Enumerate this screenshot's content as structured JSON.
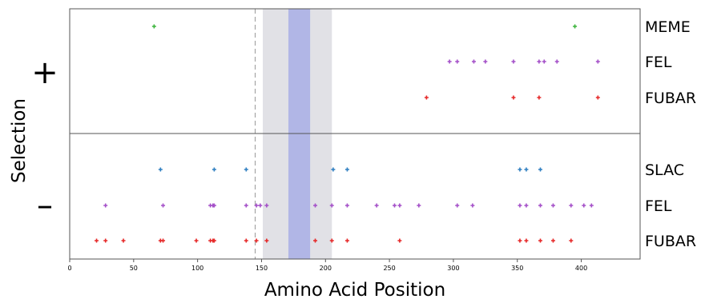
{
  "chart_data": {
    "type": "scatter",
    "title": "",
    "xlabel": "Amino Acid Position",
    "ylabel": "Selection",
    "xlim": [
      0,
      446
    ],
    "xticks": [
      0,
      50,
      100,
      150,
      200,
      250,
      300,
      350,
      400
    ],
    "grid": false,
    "legend": "none",
    "groups": [
      {
        "sign": "+",
        "tracks": [
          {
            "name": "MEME",
            "color": "#3cb43c",
            "x": [
              66,
              395
            ]
          },
          {
            "name": "FEL",
            "color": "#a44fc8",
            "x": [
              297,
              303,
              316,
              325,
              347,
              367,
              371,
              381,
              413
            ]
          },
          {
            "name": "FUBAR",
            "color": "#e62828",
            "x": [
              279,
              347,
              367,
              413
            ]
          }
        ]
      },
      {
        "sign": "–",
        "tracks": [
          {
            "name": "SLAC",
            "color": "#2f7fc1",
            "x": [
              71,
              113,
              138,
              206,
              217,
              352,
              357,
              368
            ]
          },
          {
            "name": "FEL",
            "color": "#a44fc8",
            "x": [
              28,
              73,
              110,
              112,
              113,
              138,
              146,
              149,
              154,
              192,
              205,
              217,
              240,
              254,
              258,
              273,
              303,
              315,
              352,
              357,
              368,
              378,
              392,
              402,
              408
            ]
          },
          {
            "name": "FUBAR",
            "color": "#e62828",
            "x": [
              21,
              28,
              42,
              71,
              73,
              99,
              110,
              112,
              113,
              138,
              146,
              154,
              192,
              205,
              217,
              258,
              352,
              357,
              368,
              378,
              392
            ]
          }
        ]
      }
    ],
    "regions": [
      {
        "x": [
          151,
          205
        ],
        "color": "#e1e1e6"
      },
      {
        "x": [
          171,
          188
        ],
        "color": "#b1b6e6"
      }
    ],
    "reference_line": {
      "x": 145,
      "style": "dashed",
      "color": "#999999"
    }
  }
}
